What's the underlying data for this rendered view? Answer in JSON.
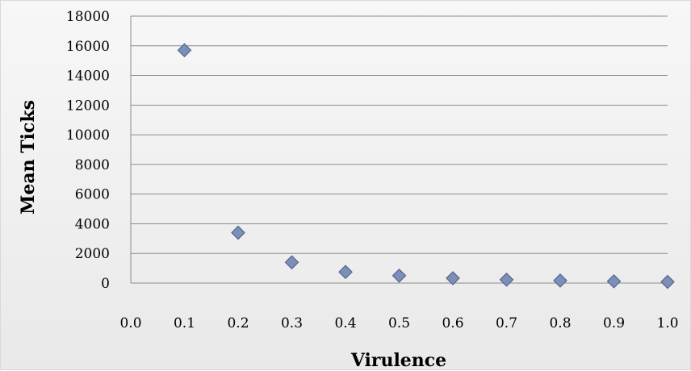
{
  "chart_data": {
    "type": "scatter",
    "title": "",
    "xlabel": "Virulence",
    "ylabel": "Mean Ticks",
    "xlim": [
      0.0,
      1.0
    ],
    "ylim": [
      0,
      18000
    ],
    "x_ticks": [
      "0.0",
      "0.1",
      "0.2",
      "0.3",
      "0.4",
      "0.5",
      "0.6",
      "0.7",
      "0.8",
      "0.9",
      "1.0"
    ],
    "y_ticks": [
      "0",
      "2000",
      "4000",
      "6000",
      "8000",
      "10000",
      "12000",
      "14000",
      "16000",
      "18000"
    ],
    "grid": "horizontal",
    "legend": "none",
    "marker": "diamond",
    "marker_color": "#7c8fb8",
    "marker_edge_color": "#55658e",
    "series": [
      {
        "x": [
          0.1,
          0.2,
          0.3,
          0.4,
          0.5,
          0.6,
          0.7,
          0.8,
          0.9,
          1.0
        ],
        "y": [
          15700,
          3400,
          1400,
          750,
          500,
          330,
          230,
          170,
          120,
          80
        ]
      }
    ]
  }
}
